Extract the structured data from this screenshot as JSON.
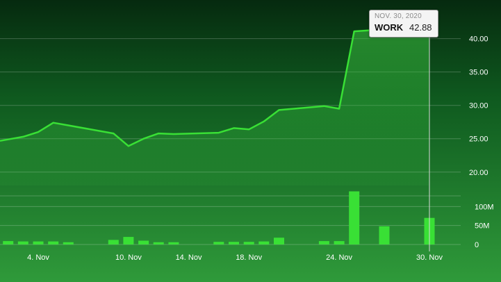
{
  "chart_data": [
    {
      "type": "line",
      "series": [
        {
          "x": [
            "2020-11-02",
            "2020-11-03",
            "2020-11-04",
            "2020-11-05",
            "2020-11-06",
            "2020-11-09",
            "2020-11-10",
            "2020-11-11",
            "2020-11-12",
            "2020-11-13",
            "2020-11-16",
            "2020-11-17",
            "2020-11-18",
            "2020-11-19",
            "2020-11-20",
            "2020-11-23",
            "2020-11-24",
            "2020-11-25",
            "2020-11-27",
            "2020-11-30"
          ],
          "values": [
            24.9,
            25.3,
            26.0,
            27.4,
            27.0,
            25.8,
            23.9,
            25.0,
            25.8,
            25.7,
            25.9,
            26.6,
            26.4,
            27.6,
            29.3,
            29.9,
            29.5,
            41.1,
            41.4,
            42.88
          ]
        }
      ],
      "y_ticks": [
        "20.00",
        "25.00",
        "30.00",
        "35.00",
        "40.00"
      ],
      "ylim": [
        18.0,
        43.5
      ],
      "grid": true,
      "color": "#39e035"
    },
    {
      "type": "bar",
      "categories": [
        "2020-11-02",
        "2020-11-03",
        "2020-11-04",
        "2020-11-05",
        "2020-11-06",
        "2020-11-09",
        "2020-11-10",
        "2020-11-11",
        "2020-11-12",
        "2020-11-13",
        "2020-11-16",
        "2020-11-17",
        "2020-11-18",
        "2020-11-19",
        "2020-11-20",
        "2020-11-23",
        "2020-11-24",
        "2020-11-25",
        "2020-11-27",
        "2020-11-30"
      ],
      "values": [
        9,
        8,
        8,
        8,
        6,
        12,
        20,
        10,
        6,
        6,
        7,
        7,
        7,
        8,
        18,
        9,
        9,
        140,
        48,
        70
      ],
      "unit": "M",
      "y_ticks": [
        "0",
        "50M",
        "100M"
      ],
      "ylim": [
        0,
        150
      ],
      "color": "#39e035"
    }
  ],
  "x_ticks": [
    "4. Nov",
    "10. Nov",
    "14. Nov",
    "18. Nov",
    "24. Nov",
    "30. Nov"
  ],
  "tooltip": {
    "date": "NOV. 30, 2020",
    "ticker": "WORK",
    "value": "42.88"
  }
}
